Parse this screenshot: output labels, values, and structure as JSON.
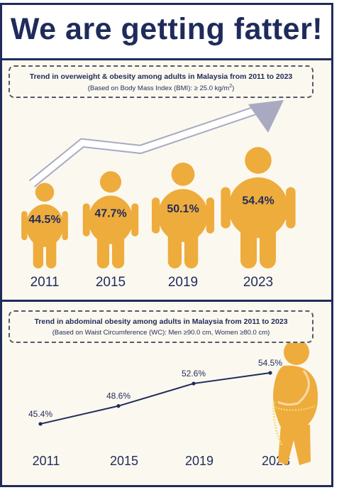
{
  "header": {
    "title": "We are getting fatter!"
  },
  "chart_data": [
    {
      "type": "bar",
      "title": "Trend in overweight & obesity among adults in Malaysia from 2011 to 2023",
      "subtitle_prefix": "(Based on Body Mass Index (BMI): ≥ 25.0 kg/m",
      "subtitle_sup": "2",
      "subtitle_suffix": ")",
      "categories": [
        "2011",
        "2015",
        "2019",
        "2023"
      ],
      "values": [
        44.5,
        47.7,
        50.1,
        54.4
      ],
      "value_labels": [
        "44.5%",
        "47.7%",
        "50.1%",
        "54.4%"
      ],
      "unit": "%",
      "marker": "person-silhouette",
      "trend_arrow": true
    },
    {
      "type": "line",
      "title": "Trend in abdominal obesity among adults in Malaysia from 2011 to 2023",
      "subtitle": "(Based on Waist Circumference (WC): Men ≥90.0 cm, Women ≥80.0 cm)",
      "x": [
        "2011",
        "2015",
        "2019",
        "2023"
      ],
      "values": [
        45.4,
        48.6,
        52.6,
        54.5
      ],
      "value_labels": [
        "45.4%",
        "48.6%",
        "52.6%",
        "54.5%"
      ],
      "unit": "%",
      "decoration": "person-measuring-waist"
    }
  ],
  "colors": {
    "navy": "#1f2b5b",
    "figure": "#eeac3d",
    "arrow": "#a9aac2",
    "background": "#fbf8ef"
  }
}
